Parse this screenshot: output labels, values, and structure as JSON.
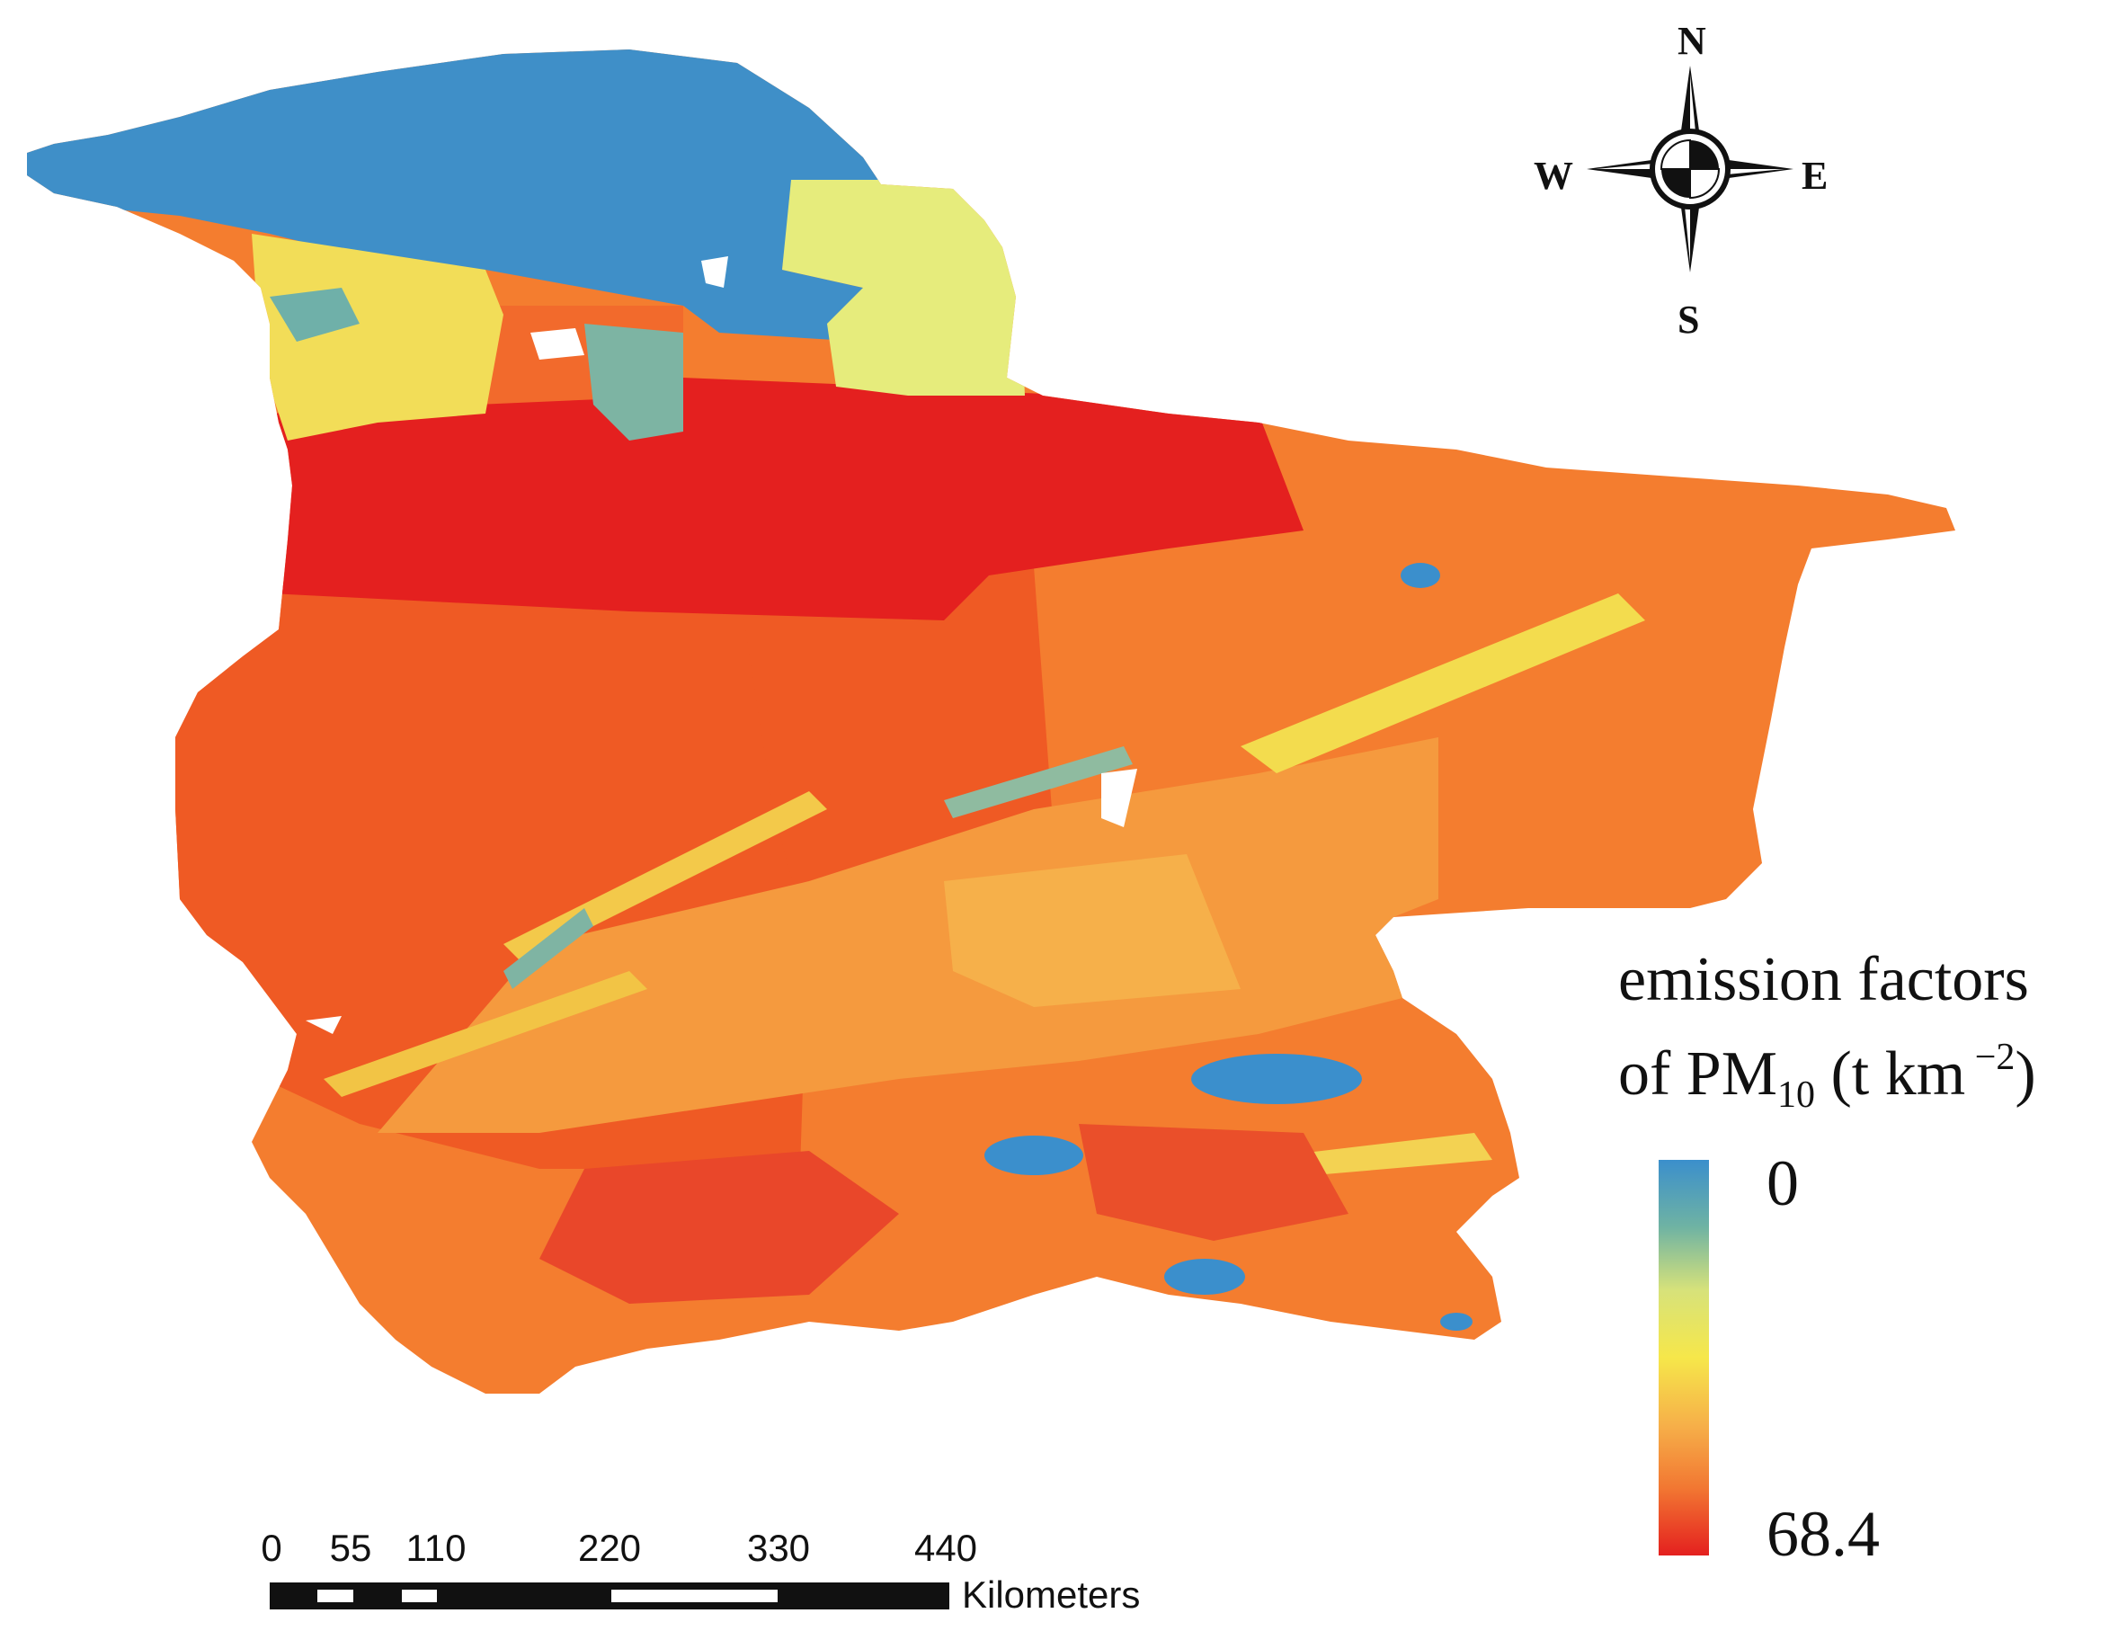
{
  "compass": {
    "n": "N",
    "s": "S",
    "e": "E",
    "w": "W"
  },
  "legend": {
    "title_line1": "emission factors",
    "title_line2_pre": "of PM",
    "title_line2_sub": "10",
    "title_line2_mid": " (t km",
    "title_line2_sup": " −2",
    "title_line2_post": ")",
    "min_label": "0",
    "max_label": "68.4",
    "ramp_colors": [
      "#3b8fcc",
      "#6fb3a3",
      "#d7e27a",
      "#f6e74a",
      "#f6b049",
      "#f27732",
      "#e4201f"
    ]
  },
  "scale_bar": {
    "ticks": [
      "0",
      "55",
      "110",
      "220",
      "330",
      "440"
    ],
    "unit": "Kilometers"
  },
  "colors": {
    "blue": "#3b8fcc",
    "teal": "#7fb8a0",
    "yellow": "#eef27a",
    "light_orange": "#f6a845",
    "orange": "#f47d2f",
    "dark_orange": "#ef5a24",
    "red": "#e4201f"
  }
}
